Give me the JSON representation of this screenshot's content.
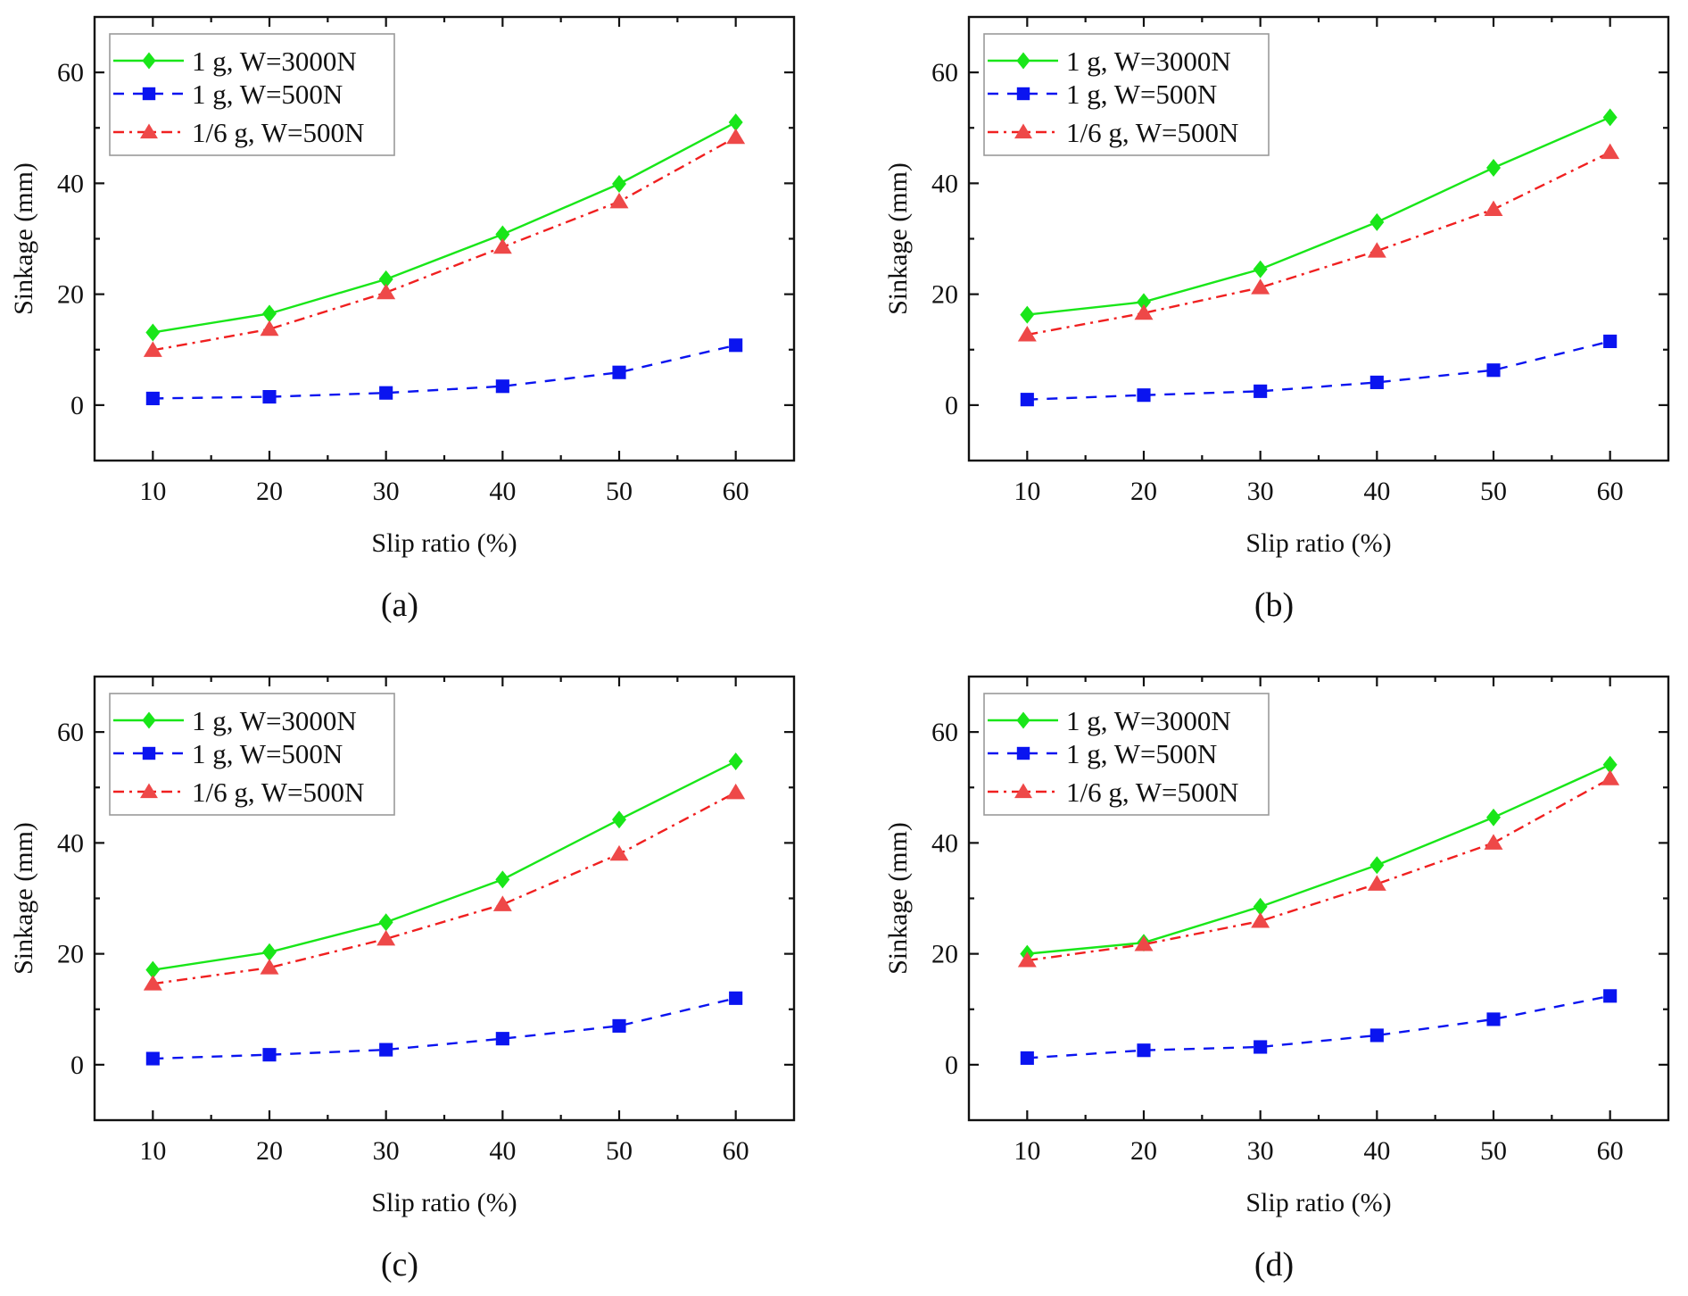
{
  "figure": {
    "captions": [
      "(a)",
      "(b)",
      "(c)",
      "(d)"
    ]
  },
  "series_style": [
    {
      "name": "1 g, W=3000N",
      "color": "#19e619",
      "marker": "diamond",
      "line": "solid"
    },
    {
      "name": "1 g, W=500N",
      "color": "#0a14f0",
      "marker": "square",
      "line": "dashed"
    },
    {
      "name": "1/6 g, W=500N",
      "color": "#f02020",
      "marker": "triangle",
      "line": "dash-dot",
      "marker_color": "#ee4848"
    }
  ],
  "chart_data": [
    {
      "type": "line",
      "panel": "(a)",
      "xlabel": "Slip ratio (%)",
      "ylabel": "Sinkage (mm)",
      "x": [
        10,
        20,
        30,
        40,
        50,
        60
      ],
      "xlim": [
        5,
        65
      ],
      "ylim": [
        -10,
        70
      ],
      "xticks": [
        10,
        20,
        30,
        40,
        50,
        60
      ],
      "yticks": [
        0,
        20,
        40,
        60
      ],
      "grid": false,
      "legend": "top-left",
      "series": [
        {
          "name": "1 g, W=3000N",
          "values": [
            13.1,
            16.5,
            22.7,
            30.8,
            39.9,
            51.0
          ]
        },
        {
          "name": "1 g, W=500N",
          "values": [
            1.2,
            1.5,
            2.2,
            3.4,
            5.9,
            10.8
          ]
        },
        {
          "name": "1/6 g, W=500N",
          "values": [
            9.9,
            13.7,
            20.3,
            28.5,
            36.7,
            48.3
          ]
        }
      ]
    },
    {
      "type": "line",
      "panel": "(b)",
      "xlabel": "Slip ratio (%)",
      "ylabel": "Sinkage (mm)",
      "x": [
        10,
        20,
        30,
        40,
        50,
        60
      ],
      "xlim": [
        5,
        65
      ],
      "ylim": [
        -10,
        70
      ],
      "xticks": [
        10,
        20,
        30,
        40,
        50,
        60
      ],
      "yticks": [
        0,
        20,
        40,
        60
      ],
      "grid": false,
      "legend": "top-left",
      "series": [
        {
          "name": "1 g, W=3000N",
          "values": [
            16.3,
            18.6,
            24.5,
            33.0,
            42.8,
            51.9
          ]
        },
        {
          "name": "1 g, W=500N",
          "values": [
            1.0,
            1.8,
            2.5,
            4.1,
            6.3,
            11.5
          ]
        },
        {
          "name": "1/6 g, W=500N",
          "values": [
            12.7,
            16.6,
            21.2,
            27.8,
            35.3,
            45.6
          ]
        }
      ]
    },
    {
      "type": "line",
      "panel": "(c)",
      "xlabel": "Slip ratio (%)",
      "ylabel": "Sinkage (mm)",
      "x": [
        10,
        20,
        30,
        40,
        50,
        60
      ],
      "xlim": [
        5,
        65
      ],
      "ylim": [
        -10,
        70
      ],
      "xticks": [
        10,
        20,
        30,
        40,
        50,
        60
      ],
      "yticks": [
        0,
        20,
        40,
        60
      ],
      "grid": false,
      "legend": "top-left",
      "series": [
        {
          "name": "1 g, W=3000N",
          "values": [
            17.1,
            20.3,
            25.7,
            33.4,
            44.2,
            54.7
          ]
        },
        {
          "name": "1 g, W=500N",
          "values": [
            1.1,
            1.8,
            2.7,
            4.7,
            7.0,
            12.0
          ]
        },
        {
          "name": "1/6 g, W=500N",
          "values": [
            14.6,
            17.5,
            22.7,
            28.9,
            38.0,
            49.1
          ]
        }
      ]
    },
    {
      "type": "line",
      "panel": "(d)",
      "xlabel": "Slip ratio (%)",
      "ylabel": "Sinkage (mm)",
      "x": [
        10,
        20,
        30,
        40,
        50,
        60
      ],
      "xlim": [
        5,
        65
      ],
      "ylim": [
        -10,
        70
      ],
      "xticks": [
        10,
        20,
        30,
        40,
        50,
        60
      ],
      "yticks": [
        0,
        20,
        40,
        60
      ],
      "grid": false,
      "legend": "top-left",
      "series": [
        {
          "name": "1 g, W=3000N",
          "values": [
            20.0,
            22.0,
            28.5,
            36.0,
            44.6,
            54.1
          ]
        },
        {
          "name": "1 g, W=500N",
          "values": [
            1.2,
            2.6,
            3.2,
            5.3,
            8.2,
            12.4
          ]
        },
        {
          "name": "1/6 g, W=500N",
          "values": [
            18.8,
            21.7,
            25.9,
            32.6,
            40.0,
            51.6
          ]
        }
      ]
    }
  ]
}
